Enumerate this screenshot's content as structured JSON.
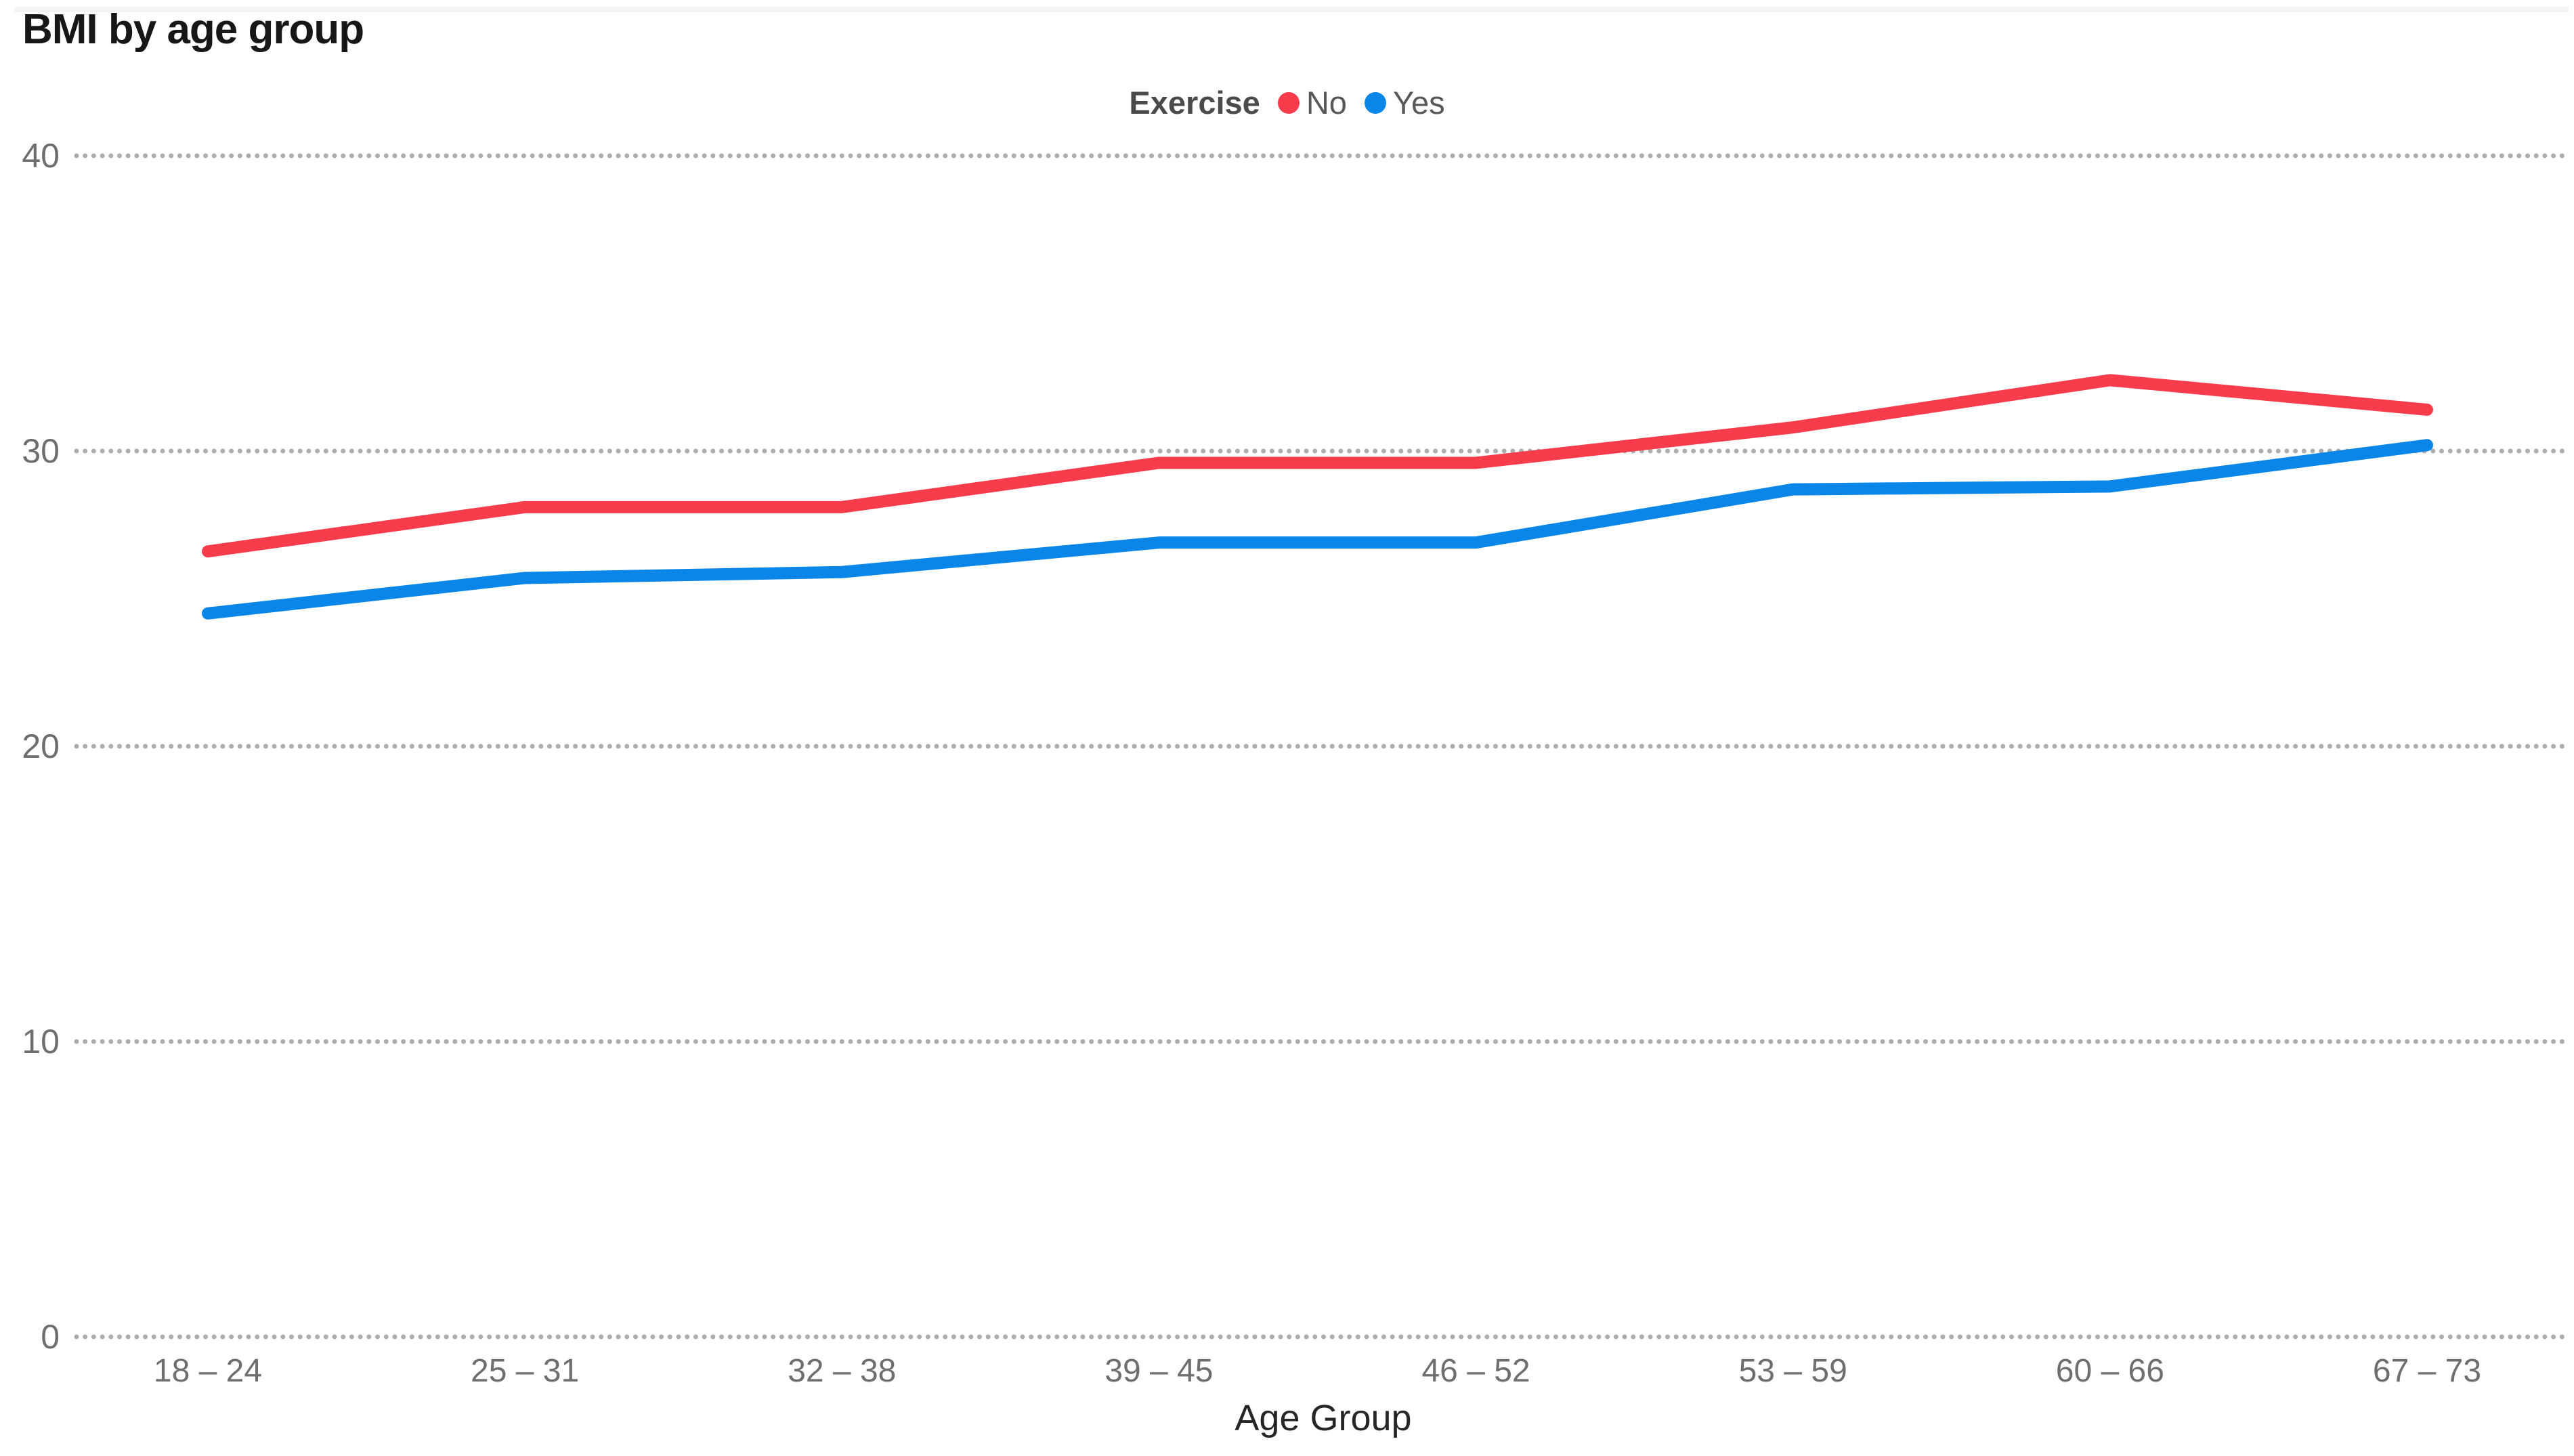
{
  "legend": {
    "title": "Exercise"
  },
  "colors": {
    "series_no": "#F83C4B",
    "series_yes": "#0A86E9",
    "gridline": "#ADADAD",
    "tick_label": "#6E6E6E",
    "title_text": "#171717",
    "axis_title_text": "#262626",
    "legend_text": "#575757"
  },
  "chart_data": {
    "type": "line",
    "title": "BMI by age group",
    "xlabel": "Age Group",
    "ylabel": "",
    "categories": [
      "18 – 24",
      "25 – 31",
      "32 – 38",
      "39 – 45",
      "46 – 52",
      "53 – 59",
      "60 – 66",
      "67 – 73"
    ],
    "series": [
      {
        "name": "No",
        "color": "#F83C4B",
        "values": [
          26.6,
          28.1,
          28.1,
          29.6,
          29.6,
          30.8,
          32.4,
          31.4
        ]
      },
      {
        "name": "Yes",
        "color": "#0A86E9",
        "values": [
          24.5,
          25.7,
          25.9,
          26.9,
          26.9,
          28.7,
          28.8,
          30.2
        ]
      }
    ],
    "yticks": [
      0,
      10,
      20,
      30,
      40
    ],
    "ylim": [
      0,
      42
    ],
    "grid": "horizontal-dotted",
    "legend_position": "top-center",
    "legend_title": "Exercise"
  }
}
